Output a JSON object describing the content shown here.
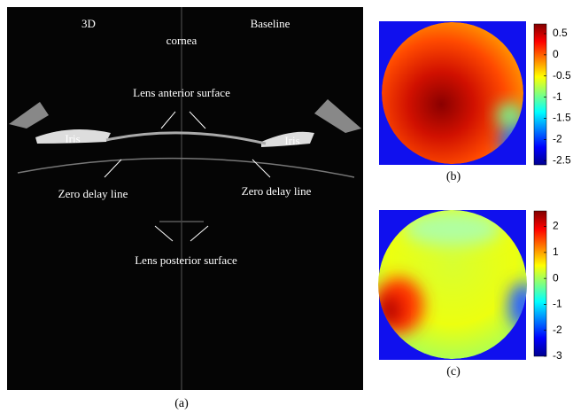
{
  "panels": [
    {
      "label": "(a)",
      "annotations": [
        "3D",
        "Baseline",
        "cornea",
        "Lens anterior surface",
        "Iris",
        "Iris",
        "Zero delay line",
        "Zero delay line",
        "Lens posterior surface"
      ]
    },
    {
      "label": "(b)",
      "colorbar": {
        "lim": [
          -2.6,
          0.73
        ],
        "ticks": [
          0.5,
          0,
          -0.5,
          -1,
          -1.5,
          -2,
          -2.5
        ]
      }
    },
    {
      "label": "(c)",
      "colorbar": {
        "lim": [
          -3,
          2.6
        ],
        "ticks": [
          2,
          1,
          0,
          -1,
          -2,
          -3
        ]
      }
    }
  ]
}
